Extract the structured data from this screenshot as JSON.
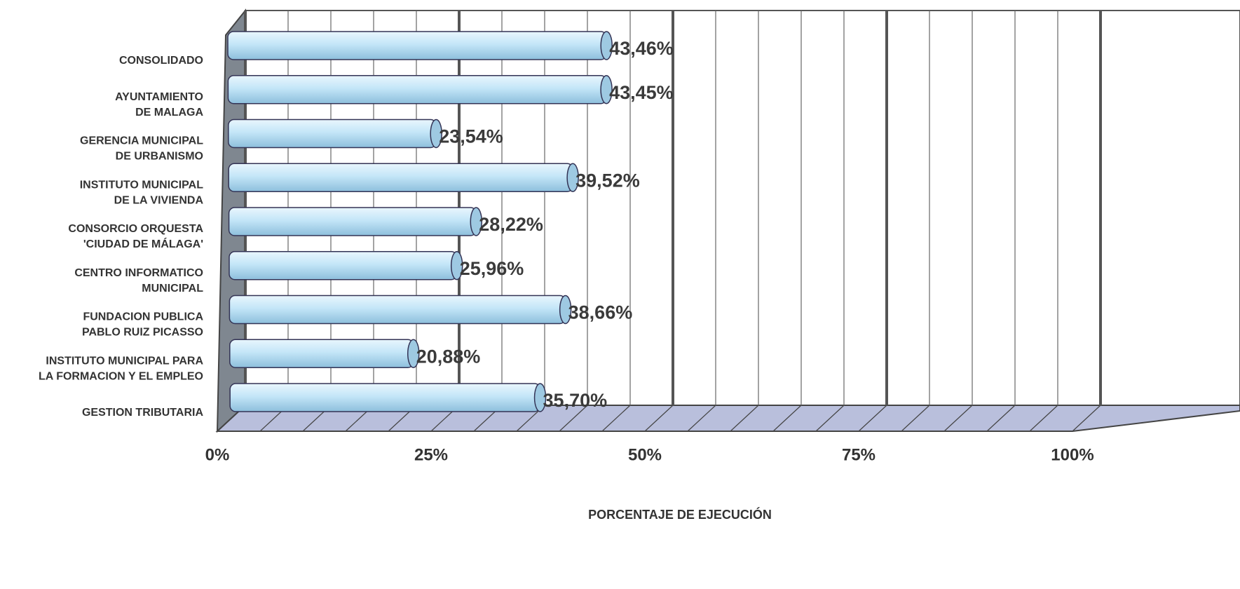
{
  "chart_data": {
    "type": "bar3d",
    "orientation": "horizontal",
    "categories": [
      "CONSOLIDADO",
      "AYUNTAMIENTO\nDE MALAGA",
      "GERENCIA MUNICIPAL\nDE URBANISMO",
      "INSTITUTO MUNICIPAL\nDE LA VIVIENDA",
      "CONSORCIO ORQUESTA\n'CIUDAD DE MÁLAGA'",
      "CENTRO INFORMATICO\nMUNICIPAL",
      "FUNDACION PUBLICA\nPABLO RUIZ PICASSO",
      "INSTITUTO MUNICIPAL PARA\nLA FORMACION Y EL EMPLEO",
      "GESTION TRIBUTARIA"
    ],
    "values": [
      43.46,
      43.45,
      23.54,
      39.52,
      28.22,
      25.96,
      38.66,
      20.88,
      35.7
    ],
    "value_labels": [
      "43,46%",
      "43,45%",
      "23,54%",
      "39,52%",
      "28,22%",
      "25,96%",
      "38,66%",
      "20,88%",
      "35,70%"
    ],
    "color": "#bfe3f7",
    "xlim": [
      0,
      100
    ],
    "xticks": [
      {
        "value": 0,
        "label": "0%"
      },
      {
        "value": 25,
        "label": "25%"
      },
      {
        "value": 50,
        "label": "50%"
      },
      {
        "value": 75,
        "label": "75%"
      },
      {
        "value": 100,
        "label": "100%"
      }
    ],
    "xlabel": "PORCENTAJE DE EJECUCIÓN",
    "grid": true
  }
}
